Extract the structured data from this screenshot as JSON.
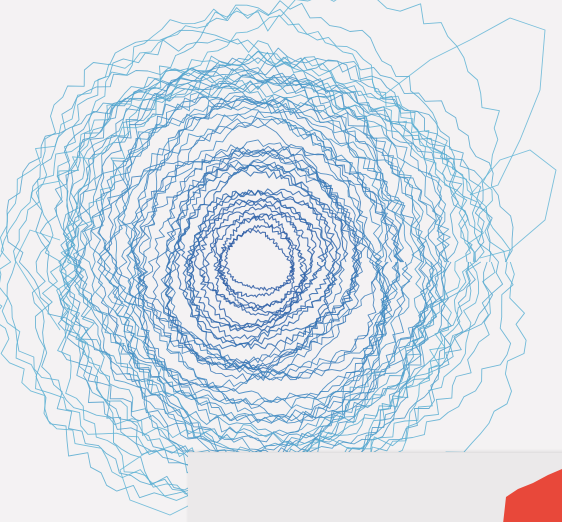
{
  "visualization": {
    "kind": "concentric-jagged-rings",
    "ring_count": 58,
    "inner_color": "#2b5aa3",
    "mid_color": "#3c86c0",
    "outer_color": "#5cb3d4",
    "stroke_opacity": 0.85
  },
  "overlay_panel": {
    "background": "#ebe9ea",
    "accent_color": "#e8483a"
  }
}
